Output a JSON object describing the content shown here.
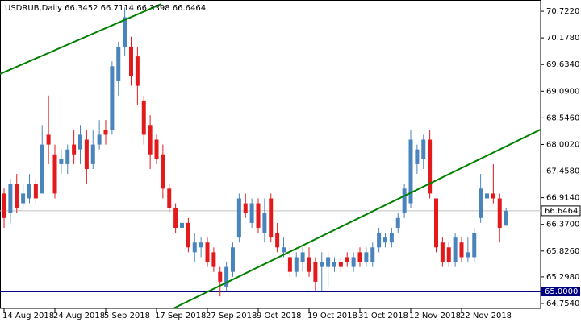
{
  "chart_data": {
    "type": "candlestick",
    "title": "USDRUB,Daily 66.3452 66.7114 66.3398 66.6464",
    "categories": [
      "14 Aug 2018",
      null,
      null,
      null,
      null,
      null,
      null,
      null,
      "24 Aug 2018",
      null,
      null,
      null,
      null,
      null,
      null,
      null,
      "5 Sep 2018",
      null,
      null,
      null,
      null,
      null,
      null,
      null,
      "17 Sep 2018",
      null,
      null,
      null,
      null,
      null,
      null,
      null,
      "27 Sep 2018",
      null,
      null,
      null,
      null,
      null,
      null,
      null,
      "9 Oct 2018",
      null,
      null,
      null,
      null,
      null,
      null,
      null,
      "19 Oct 2018",
      null,
      null,
      null,
      null,
      null,
      null,
      null,
      "31 Oct 2018",
      null,
      null,
      null,
      null,
      null,
      null,
      null,
      "12 Nov 2018",
      null,
      null,
      null,
      null,
      null,
      null,
      null,
      "22 Nov 2018",
      null,
      null,
      null,
      null,
      null,
      null,
      null
    ],
    "open": [
      67.0,
      66.6,
      67.2,
      66.8,
      66.9,
      67.2,
      67.0,
      68.2,
      67.8,
      67.6,
      67.6,
      68.0,
      67.9,
      68.1,
      67.6,
      68.0,
      68.3,
      68.3,
      69.3,
      70.0,
      70.0,
      69.8,
      68.9,
      68.4,
      68.1,
      67.8,
      67.1,
      66.7,
      66.3,
      66.4,
      65.8,
      65.9,
      66.0,
      65.8,
      65.4,
      65.1,
      65.4,
      66.1,
      66.8,
      66.4,
      66.8,
      66.2,
      66.9,
      66.2,
      65.8,
      65.7,
      65.4,
      65.6,
      65.7,
      65.6,
      65.5,
      65.5,
      65.5,
      65.6,
      65.7,
      65.5,
      65.8,
      65.6,
      65.6,
      65.9,
      66.0,
      66.0,
      66.3,
      66.6,
      66.8,
      67.6,
      67.7,
      68.1,
      66.9,
      66.0,
      65.9,
      65.6,
      66.0,
      65.7,
      65.7,
      66.5,
      66.9,
      67.0,
      66.9,
      66.3452
    ],
    "high": [
      67.1,
      67.3,
      67.4,
      67.2,
      67.4,
      67.3,
      68.4,
      69.0,
      68.0,
      67.9,
      68.0,
      68.3,
      68.4,
      68.3,
      68.3,
      68.5,
      68.5,
      69.7,
      70.1,
      70.8,
      70.2,
      70.0,
      69.0,
      68.6,
      68.2,
      68.0,
      67.2,
      66.8,
      66.6,
      66.5,
      66.2,
      66.1,
      66.1,
      65.9,
      65.5,
      65.6,
      66.0,
      67.0,
      67.0,
      66.9,
      66.9,
      66.9,
      67.0,
      66.4,
      66.1,
      65.9,
      65.8,
      65.9,
      65.9,
      65.7,
      65.8,
      65.8,
      65.7,
      65.7,
      65.8,
      65.8,
      65.9,
      65.9,
      66.0,
      66.3,
      66.2,
      66.3,
      66.6,
      67.2,
      68.3,
      68.0,
      68.2,
      68.3,
      66.9,
      66.1,
      66.0,
      66.2,
      66.1,
      66.1,
      66.3,
      67.4,
      67.3,
      67.6,
      67.0,
      66.7114
    ],
    "low": [
      66.3,
      66.4,
      66.6,
      66.7,
      66.8,
      66.8,
      67.0,
      67.6,
      66.9,
      67.4,
      67.4,
      67.6,
      67.6,
      67.2,
      67.5,
      67.9,
      68.0,
      68.2,
      69.0,
      69.8,
      69.2,
      68.8,
      68.0,
      67.5,
      67.6,
      66.9,
      66.6,
      66.2,
      66.1,
      65.8,
      65.6,
      65.7,
      65.5,
      65.4,
      64.9,
      65.0,
      65.3,
      66.0,
      66.5,
      66.3,
      66.2,
      66.0,
      66.0,
      65.8,
      65.7,
      65.3,
      65.3,
      65.4,
      65.3,
      65.0,
      65.0,
      65.1,
      65.4,
      65.4,
      65.5,
      65.4,
      65.5,
      65.5,
      65.5,
      65.8,
      65.9,
      65.9,
      66.2,
      66.5,
      66.7,
      67.4,
      67.5,
      66.9,
      65.8,
      65.5,
      65.5,
      65.5,
      65.6,
      65.6,
      65.6,
      66.4,
      66.6,
      66.8,
      66.0,
      66.3398
    ],
    "close": [
      66.5,
      67.2,
      66.7,
      67.0,
      67.2,
      66.9,
      68.0,
      68.0,
      67.0,
      67.7,
      67.9,
      67.8,
      68.2,
      67.5,
      68.0,
      68.2,
      68.2,
      69.6,
      70.0,
      70.6,
      69.4,
      69.2,
      68.2,
      67.8,
      67.7,
      67.1,
      66.7,
      66.3,
      66.4,
      65.9,
      66.0,
      66.0,
      65.6,
      65.5,
      65.2,
      65.5,
      65.9,
      66.9,
      66.6,
      66.8,
      66.3,
      66.6,
      66.1,
      65.9,
      65.9,
      65.4,
      65.7,
      65.8,
      65.4,
      65.2,
      65.6,
      65.7,
      65.6,
      65.5,
      65.6,
      65.7,
      65.6,
      65.8,
      65.9,
      66.2,
      66.1,
      66.2,
      66.5,
      67.1,
      68.1,
      67.9,
      68.1,
      67.0,
      65.9,
      65.6,
      65.6,
      66.1,
      65.7,
      65.8,
      66.2,
      67.1,
      67.0,
      66.9,
      66.3,
      66.6464
    ],
    "up_color": "#4a84bd",
    "down_color": "#e31a1c",
    "ylim": [
      64.655,
      70.953
    ],
    "yticks": [
      {
        "value": 70.722,
        "label": "70.7220"
      },
      {
        "value": 70.178,
        "label": "70.1780"
      },
      {
        "value": 69.634,
        "label": "69.6340"
      },
      {
        "value": 69.09,
        "label": "69.0900"
      },
      {
        "value": 68.546,
        "label": "68.5460"
      },
      {
        "value": 68.002,
        "label": "68.0020"
      },
      {
        "value": 67.458,
        "label": "67.4580"
      },
      {
        "value": 66.914,
        "label": "66.9140"
      },
      {
        "value": 66.37,
        "label": "66.3700"
      },
      {
        "value": 65.826,
        "label": "65.8260"
      },
      {
        "value": 65.298,
        "label": "65.2980"
      },
      {
        "value": 64.754,
        "label": "64.7540"
      }
    ],
    "price_line": {
      "value": 66.6464,
      "label": "66.6464"
    },
    "hline": {
      "value": 65.0,
      "label": "65.0000",
      "color": "#000080"
    }
  }
}
